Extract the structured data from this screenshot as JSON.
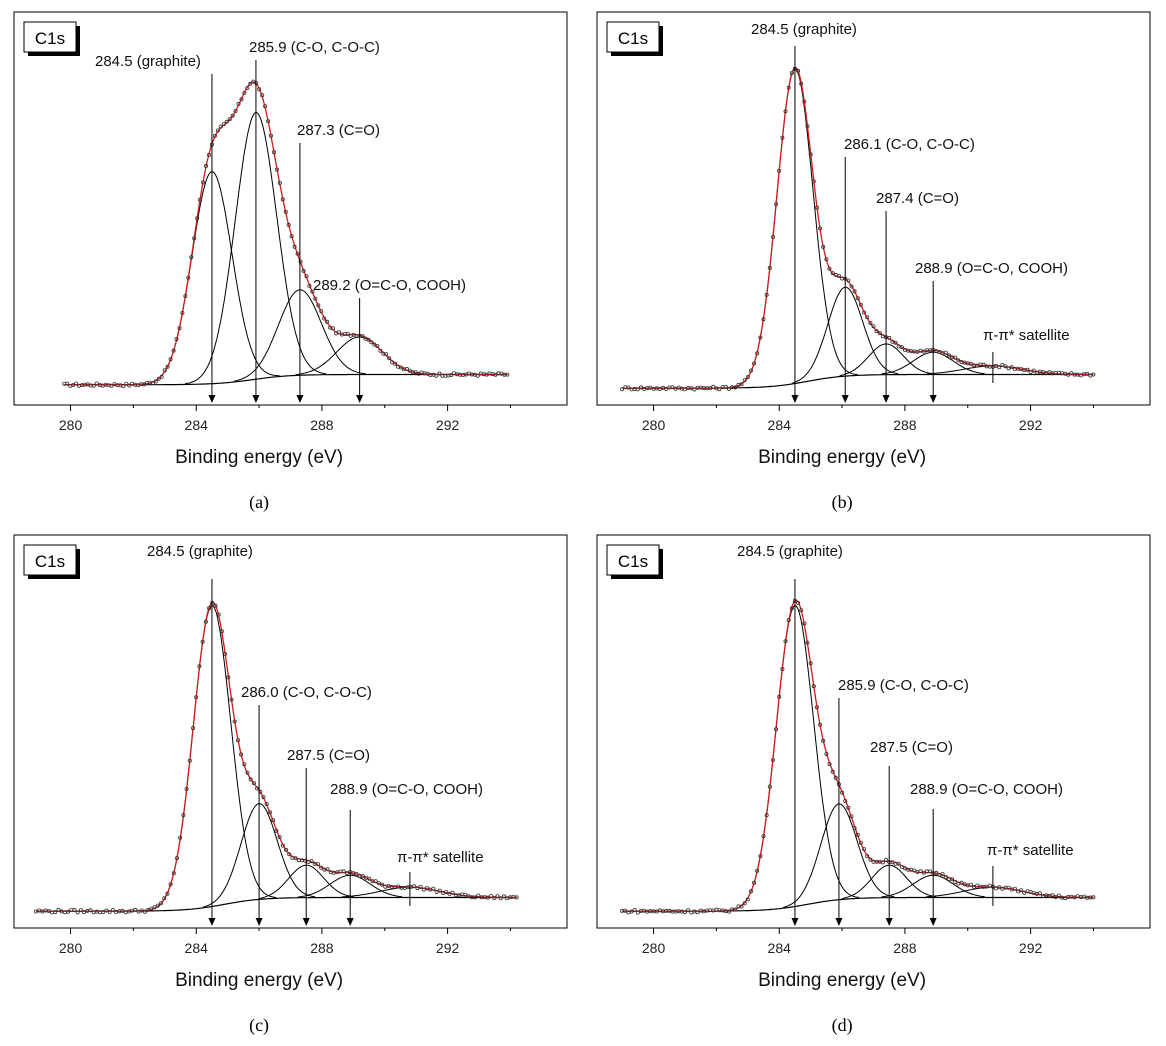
{
  "chart_data": [
    {
      "type": "line",
      "panel_label": "(a)",
      "box_label": "C1s",
      "xlabel": "Binding energy (eV)",
      "ylabel": "",
      "xlim": [
        278.2,
        295.8
      ],
      "xticks": [
        280,
        284,
        288,
        292
      ],
      "ylim": [
        0,
        1.12
      ],
      "exp_range": [
        279.8,
        293.9
      ],
      "peaks": [
        {
          "center": 284.5,
          "height": 0.62,
          "fwhm": 1.5,
          "label": "284.5 (graphite)"
        },
        {
          "center": 285.9,
          "height": 0.78,
          "fwhm": 1.55,
          "label": "285.9 (C-O, C-O-C)"
        },
        {
          "center": 287.3,
          "height": 0.25,
          "fwhm": 1.6,
          "label": "287.3 (C=O)"
        },
        {
          "center": 289.2,
          "height": 0.11,
          "fwhm": 1.7,
          "label": "289.2 (O=C-O, COOH)"
        }
      ],
      "satellite": null,
      "baseline_low": 0.03,
      "baseline_high": 0.06,
      "shirley_center": 285.8
    },
    {
      "type": "line",
      "panel_label": "(b)",
      "box_label": "C1s",
      "xlabel": "Binding energy (eV)",
      "ylabel": "",
      "xlim": [
        278.2,
        295.8
      ],
      "xticks": [
        280,
        284,
        288,
        292
      ],
      "ylim": [
        0,
        1.12
      ],
      "exp_range": [
        279.0,
        294.0
      ],
      "peaks": [
        {
          "center": 284.5,
          "height": 0.92,
          "fwhm": 1.35,
          "label": "284.5 (graphite)"
        },
        {
          "center": 286.1,
          "height": 0.26,
          "fwhm": 1.3,
          "label": "286.1 (C-O, C-O-C)"
        },
        {
          "center": 287.4,
          "height": 0.09,
          "fwhm": 1.3,
          "label": "287.4 (C=O)"
        },
        {
          "center": 288.9,
          "height": 0.065,
          "fwhm": 1.5,
          "label": "288.9 (O=C-O, COOH)"
        }
      ],
      "satellite": {
        "center": 290.8,
        "height": 0.025,
        "fwhm": 2.2,
        "label": "π-π* satellite"
      },
      "baseline_low": 0.02,
      "baseline_high": 0.06,
      "shirley_center": 284.9
    },
    {
      "type": "line",
      "panel_label": "(c)",
      "box_label": "C1s",
      "xlabel": "Binding energy (eV)",
      "ylabel": "",
      "xlim": [
        278.2,
        295.8
      ],
      "xticks": [
        280,
        284,
        288,
        292
      ],
      "ylim": [
        0,
        1.12
      ],
      "exp_range": [
        278.9,
        294.2
      ],
      "peaks": [
        {
          "center": 284.5,
          "height": 0.88,
          "fwhm": 1.4,
          "label": "284.5 (graphite)"
        },
        {
          "center": 286.0,
          "height": 0.28,
          "fwhm": 1.35,
          "label": "286.0 (C-O, C-O-C)"
        },
        {
          "center": 287.5,
          "height": 0.095,
          "fwhm": 1.3,
          "label": "287.5 (C=O)"
        },
        {
          "center": 288.9,
          "height": 0.065,
          "fwhm": 1.5,
          "label": "288.9 (O=C-O, COOH)"
        }
      ],
      "satellite": {
        "center": 290.8,
        "height": 0.03,
        "fwhm": 2.2,
        "label": "π-π* satellite"
      },
      "baseline_low": 0.02,
      "baseline_high": 0.06,
      "shirley_center": 284.9
    },
    {
      "type": "line",
      "panel_label": "(d)",
      "box_label": "C1s",
      "xlabel": "Binding energy (eV)",
      "ylabel": "",
      "xlim": [
        278.2,
        295.8
      ],
      "xticks": [
        280,
        284,
        288,
        292
      ],
      "ylim": [
        0,
        1.12
      ],
      "exp_range": [
        279.0,
        294.0
      ],
      "peaks": [
        {
          "center": 284.5,
          "height": 0.88,
          "fwhm": 1.4,
          "label": "284.5 (graphite)"
        },
        {
          "center": 285.9,
          "height": 0.28,
          "fwhm": 1.35,
          "label": "285.9 (C-O, C-O-C)"
        },
        {
          "center": 287.5,
          "height": 0.095,
          "fwhm": 1.3,
          "label": "287.5 (C=O)"
        },
        {
          "center": 288.9,
          "height": 0.065,
          "fwhm": 1.5,
          "label": "288.9 (O=C-O, COOH)"
        }
      ],
      "satellite": {
        "center": 290.8,
        "height": 0.03,
        "fwhm": 2.2,
        "label": "π-π* satellite"
      },
      "baseline_low": 0.02,
      "baseline_high": 0.06,
      "shirley_center": 284.9
    }
  ],
  "colors": {
    "envelope": "#d21a1a",
    "component": "#000000",
    "experimental": "#333333"
  }
}
